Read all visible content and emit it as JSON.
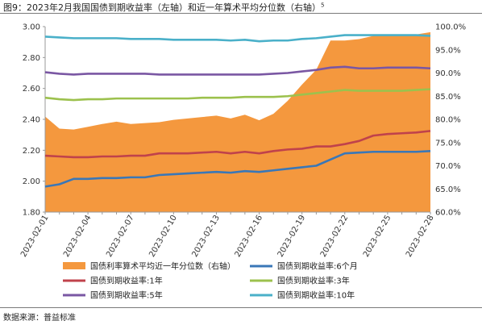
{
  "title": "图9：2023年2月我国国债到期收益率（左轴）和近一年算术平均分位数（右轴）",
  "title_superscript": "5",
  "source": "数据来源：普益标准",
  "chart_data": {
    "type": "line",
    "x": [
      "2023-02-01",
      "2023-02-02",
      "2023-02-03",
      "2023-02-04",
      "2023-02-05",
      "2023-02-06",
      "2023-02-07",
      "2023-02-08",
      "2023-02-09",
      "2023-02-10",
      "2023-02-11",
      "2023-02-12",
      "2023-02-13",
      "2023-02-14",
      "2023-02-15",
      "2023-02-16",
      "2023-02-17",
      "2023-02-18",
      "2023-02-19",
      "2023-02-20",
      "2023-02-21",
      "2023-02-22",
      "2023-02-23",
      "2023-02-24",
      "2023-02-25",
      "2023-02-26",
      "2023-02-27",
      "2023-02-28"
    ],
    "x_tick_labels": [
      "2023-02-01",
      "2023-02-04",
      "2023-02-07",
      "2023-02-10",
      "2023-02-13",
      "2023-02-16",
      "2023-02-19",
      "2023-02-22",
      "2023-02-25",
      "2023-02-28"
    ],
    "ylim_left": [
      1.8,
      3.0
    ],
    "yticks_left": [
      "3.00",
      "2.80",
      "2.60",
      "2.40",
      "2.20",
      "2.00",
      "1.80"
    ],
    "ylim_right": [
      60,
      100
    ],
    "yticks_right": [
      "100.0%",
      "95.0%",
      "90.0%",
      "85.0%",
      "80.0%",
      "75.0%",
      "70.0%",
      "65.0%",
      "60.0%"
    ],
    "series": [
      {
        "name": "国债利率算术平均近一年分位数（右轴）",
        "type": "area",
        "axis": "right",
        "color": "#f4983e",
        "values": [
          80.6,
          78.0,
          77.8,
          78.4,
          79.0,
          79.5,
          79.0,
          79.2,
          79.4,
          79.9,
          80.2,
          80.5,
          80.8,
          80.2,
          81.0,
          79.8,
          81.2,
          84.0,
          87.5,
          90.7,
          97.0,
          97.0,
          97.3,
          98.0,
          98.1,
          98.2,
          98.3,
          98.8
        ]
      },
      {
        "name": "国债到期收益率:6个月",
        "type": "line",
        "axis": "left",
        "color": "#3a77b7",
        "values": [
          1.965,
          1.98,
          2.015,
          2.015,
          2.02,
          2.02,
          2.025,
          2.025,
          2.04,
          2.045,
          2.05,
          2.055,
          2.06,
          2.055,
          2.065,
          2.06,
          2.07,
          2.08,
          2.09,
          2.1,
          2.14,
          2.18,
          2.185,
          2.19,
          2.19,
          2.19,
          2.19,
          2.195
        ]
      },
      {
        "name": "国债到期收益率:1年",
        "type": "line",
        "axis": "left",
        "color": "#c0424b",
        "values": [
          2.165,
          2.16,
          2.155,
          2.155,
          2.16,
          2.16,
          2.165,
          2.165,
          2.18,
          2.18,
          2.18,
          2.185,
          2.19,
          2.18,
          2.19,
          2.18,
          2.195,
          2.205,
          2.21,
          2.225,
          2.225,
          2.24,
          2.26,
          2.295,
          2.305,
          2.31,
          2.315,
          2.325
        ]
      },
      {
        "name": "国债到期收益率:3年",
        "type": "line",
        "axis": "left",
        "color": "#9cc14d",
        "values": [
          2.54,
          2.53,
          2.525,
          2.53,
          2.53,
          2.535,
          2.535,
          2.535,
          2.535,
          2.535,
          2.535,
          2.54,
          2.54,
          2.54,
          2.545,
          2.545,
          2.545,
          2.55,
          2.56,
          2.57,
          2.58,
          2.59,
          2.585,
          2.585,
          2.585,
          2.585,
          2.59,
          2.595
        ]
      },
      {
        "name": "国债到期收益率:5年",
        "type": "line",
        "axis": "left",
        "color": "#7a57a3",
        "values": [
          2.705,
          2.695,
          2.69,
          2.695,
          2.695,
          2.695,
          2.695,
          2.695,
          2.69,
          2.69,
          2.69,
          2.69,
          2.69,
          2.69,
          2.69,
          2.69,
          2.695,
          2.7,
          2.71,
          2.72,
          2.735,
          2.74,
          2.73,
          2.73,
          2.735,
          2.735,
          2.735,
          2.73
        ]
      },
      {
        "name": "国债到期收益率:10年",
        "type": "line",
        "axis": "left",
        "color": "#4ab0c9",
        "values": [
          2.935,
          2.93,
          2.925,
          2.925,
          2.925,
          2.925,
          2.92,
          2.92,
          2.92,
          2.915,
          2.915,
          2.915,
          2.915,
          2.91,
          2.915,
          2.905,
          2.91,
          2.91,
          2.92,
          2.925,
          2.935,
          2.945,
          2.945,
          2.945,
          2.945,
          2.945,
          2.945,
          2.94
        ]
      }
    ],
    "legend": [
      {
        "label": "国债利率算术平均近一年分位数（右轴）",
        "kind": "area",
        "color": "#f4983e"
      },
      {
        "label": "国债到期收益率:6个月",
        "kind": "line",
        "color": "#3a77b7"
      },
      {
        "label": "国债到期收益率:1年",
        "kind": "line",
        "color": "#c0424b"
      },
      {
        "label": "国债到期收益率:3年",
        "kind": "line",
        "color": "#9cc14d"
      },
      {
        "label": "国债到期收益率:5年",
        "kind": "line",
        "color": "#7a57a3"
      },
      {
        "label": "国债到期收益率:10年",
        "kind": "line",
        "color": "#4ab0c9"
      }
    ],
    "legend_position": "bottom",
    "grid": false
  }
}
